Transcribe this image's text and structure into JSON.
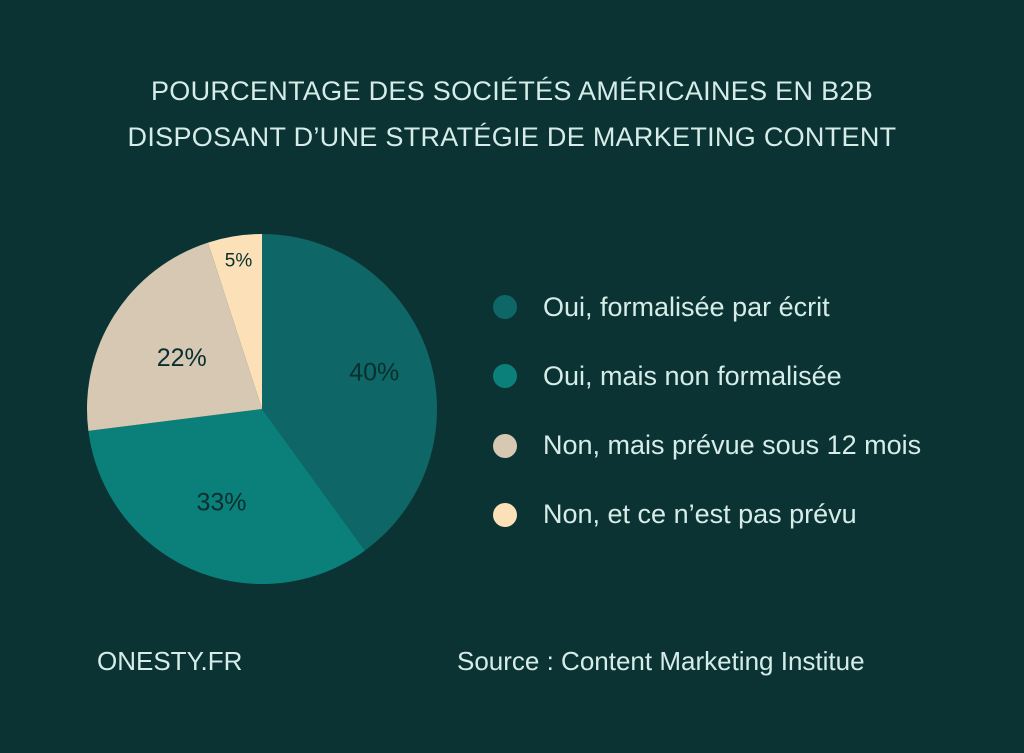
{
  "title": {
    "line1": "POURCENTAGE DES SOCIÉTÉS AMÉRICAINES EN B2B",
    "line2": "DISPOSANT D’UNE STRATÉGIE DE MARKETING CONTENT"
  },
  "chart_data": {
    "type": "pie",
    "title": "POURCENTAGE DES SOCIÉTÉS AMÉRICAINES EN B2B DISPOSANT D’UNE STRATÉGIE DE MARKETING CONTENT",
    "categories": [
      "Oui, formalisée par écrit",
      "Oui, mais non formalisée",
      "Non, mais prévue sous 12 mois",
      "Non, et ce n’est pas prévu"
    ],
    "values": [
      40,
      33,
      22,
      5
    ],
    "labels": [
      "40%",
      "33%",
      "22%",
      "5%"
    ],
    "colors": [
      "#0e6666",
      "#0b807b",
      "#d6c8b2",
      "#fbe0b8"
    ],
    "legend_position": "right"
  },
  "footer": {
    "brand": "ONESTY.FR",
    "source": "Source : Content Marketing Institue"
  }
}
